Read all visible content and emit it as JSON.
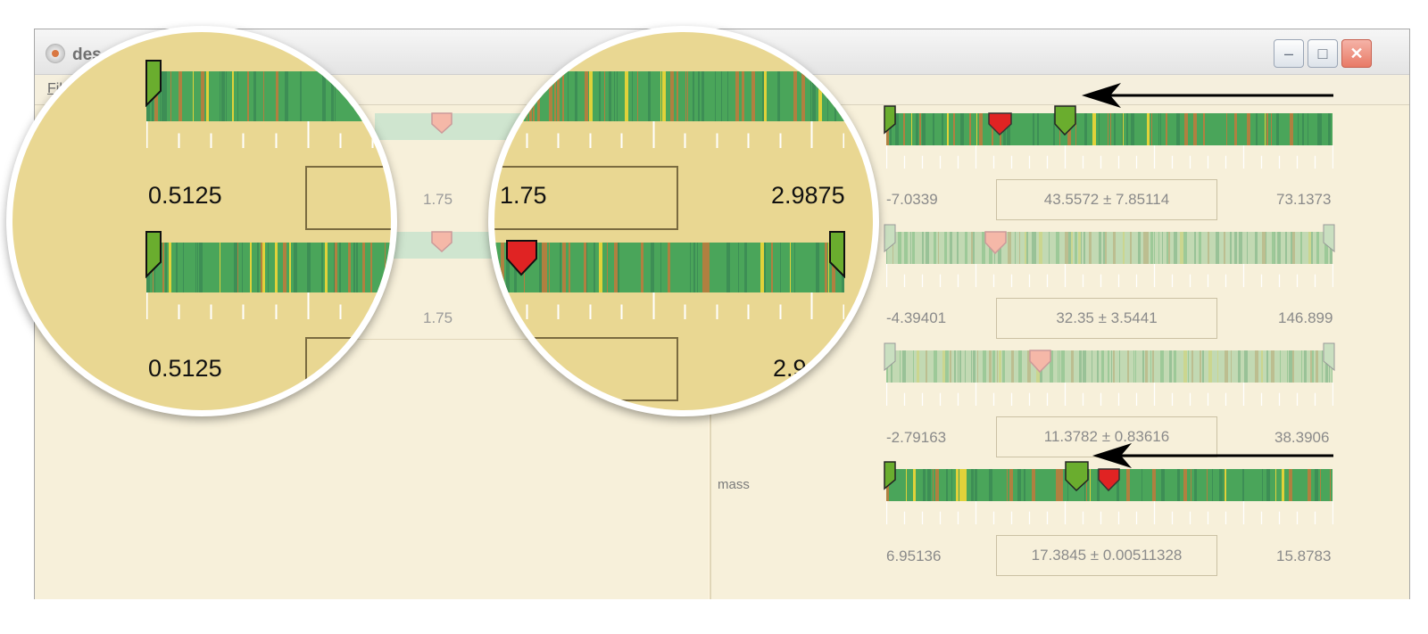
{
  "window": {
    "title": "des",
    "menu_file": "Fil",
    "controls": {
      "minimize": "–",
      "maximize": "□",
      "close": "✕"
    },
    "close_color": "#e87a66"
  },
  "colors": {
    "panel_bg": "#f7f0da",
    "lens_bg": "#e9d792",
    "bar_green": "#4aa55a",
    "bar_dark": "#3d8e55",
    "bar_brown": "#b08040",
    "bar_yellow": "#e0d23a",
    "marker_red": "#e02323",
    "marker_green": "#6aad2e",
    "marker_faded": "#f5b8a8"
  },
  "left_panel": {
    "row1": {
      "center": "1.75"
    },
    "row2": {
      "center": "1.75"
    }
  },
  "params": [
    {
      "min": "-7.0339",
      "value": "43.5572 ± 7.85114",
      "max": "73.1373",
      "active": true
    },
    {
      "min": "-4.39401",
      "value": "32.35 ± 3.5441",
      "max": "146.899",
      "active": false
    },
    {
      "min": "-2.79163",
      "value": "11.3782 ± 0.83616",
      "max": "38.3906",
      "active": false
    },
    {
      "label": "mass",
      "min": "6.95136",
      "value": "17.3845 ± 0.00511328",
      "max": "15.8783",
      "active": true
    }
  ],
  "magnifier_left": {
    "row1": {
      "min": "0.5125"
    },
    "row2": {
      "min": "0.5125"
    }
  },
  "magnifier_right": {
    "row1": {
      "center": "1.75",
      "max": "2.9875"
    },
    "row2": {
      "max": "2.9"
    }
  }
}
